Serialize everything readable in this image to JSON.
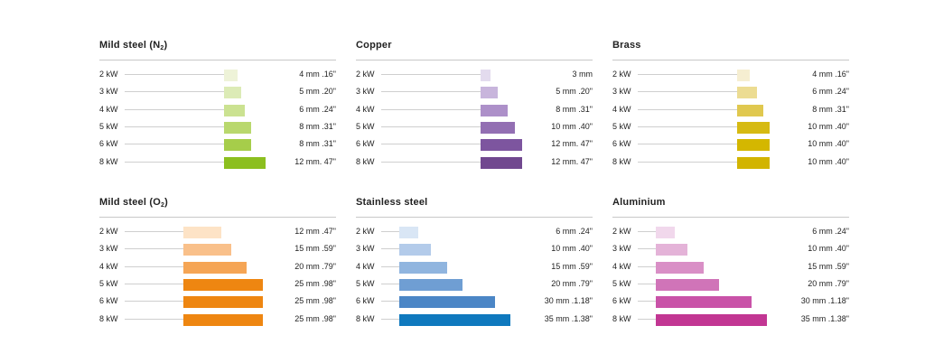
{
  "chart_data": [
    {
      "type": "bar",
      "title": "Mild steel (N",
      "title_sub": "2",
      "title_suffix": ")",
      "categories": [
        "2 kW",
        "3 kW",
        "4 kW",
        "5 kW",
        "6 kW",
        "8 kW"
      ],
      "values": [
        4,
        5,
        6,
        8,
        8,
        12
      ],
      "value_labels": [
        "4 mm .16\"",
        "5 mm .20\"",
        "6 mm .24\"",
        "8 mm .31\"",
        "8 mm .31\"",
        "12 mm. 47\""
      ],
      "unit": "mm",
      "colors": [
        "#eef3d8",
        "#dcebb6",
        "#cbe291",
        "#b9d86d",
        "#a6cd4a",
        "#8cbf1f"
      ]
    },
    {
      "type": "bar",
      "title": "Copper",
      "categories": [
        "2 kW",
        "3 kW",
        "4 kW",
        "5 kW",
        "6 kW",
        "8 kW"
      ],
      "values": [
        3,
        5,
        8,
        10,
        12,
        12
      ],
      "value_labels": [
        "3 mm",
        "5 mm .20\"",
        "8 mm .31\"",
        "10 mm .40\"",
        "12 mm. 47\"",
        "12 mm. 47\""
      ],
      "unit": "mm",
      "colors": [
        "#e3dbee",
        "#c8b5dc",
        "#ad90c9",
        "#936fb3",
        "#7d559f",
        "#71488f"
      ]
    },
    {
      "type": "bar",
      "title": "Brass",
      "categories": [
        "2 kW",
        "3 kW",
        "4 kW",
        "5 kW",
        "6 kW",
        "8 kW"
      ],
      "values": [
        4,
        6,
        8,
        10,
        10,
        10
      ],
      "value_labels": [
        "4 mm .16\"",
        "6 mm .24\"",
        "8 mm .31\"",
        "10 mm .40\"",
        "10 mm .40\"",
        "10 mm .40\""
      ],
      "unit": "mm",
      "colors": [
        "#f6eed1",
        "#ecdc92",
        "#e0c84f",
        "#d6ba12",
        "#d4b700",
        "#d2b400"
      ]
    },
    {
      "type": "bar",
      "title": "Mild steel (O",
      "title_sub": "2",
      "title_suffix": ")",
      "categories": [
        "2 kW",
        "3 kW",
        "4 kW",
        "5 kW",
        "6 kW",
        "8 kW"
      ],
      "values": [
        12,
        15,
        20,
        25,
        25,
        25
      ],
      "value_labels": [
        "12 mm .47\"",
        "15 mm .59\"",
        "20 mm .79\"",
        "25 mm .98\"",
        "25 mm .98\"",
        "25 mm .98\""
      ],
      "unit": "mm",
      "colors": [
        "#fde3c6",
        "#f9c08a",
        "#f5a555",
        "#ee8611",
        "#ee8611",
        "#ee8611"
      ]
    },
    {
      "type": "bar",
      "title": "Stainless steel",
      "categories": [
        "2 kW",
        "3 kW",
        "4 kW",
        "5 kW",
        "6 kW",
        "8 kW"
      ],
      "values": [
        6,
        10,
        15,
        20,
        30,
        35
      ],
      "value_labels": [
        "6 mm .24\"",
        "10 mm .40\"",
        "15 mm .59\"",
        "20 mm .79\"",
        "30 mm .1.18\"",
        "35 mm .1.38\""
      ],
      "unit": "mm",
      "colors": [
        "#d9e6f5",
        "#b3cbea",
        "#90b5df",
        "#6f9ed3",
        "#4b86c6",
        "#0f79be"
      ]
    },
    {
      "type": "bar",
      "title": "Aluminium",
      "categories": [
        "2 kW",
        "3 kW",
        "4 kW",
        "5 kW",
        "6 kW",
        "8 kW"
      ],
      "values": [
        6,
        10,
        15,
        20,
        30,
        35
      ],
      "value_labels": [
        "6 mm .24\"",
        "10 mm .40\"",
        "15 mm .59\"",
        "20 mm .79\"",
        "30 mm .1.18\"",
        "35 mm .1.38\""
      ],
      "unit": "mm",
      "colors": [
        "#f1d8ec",
        "#e4b3d8",
        "#d98fc6",
        "#d074b8",
        "#c952a8",
        "#c23693"
      ]
    }
  ]
}
